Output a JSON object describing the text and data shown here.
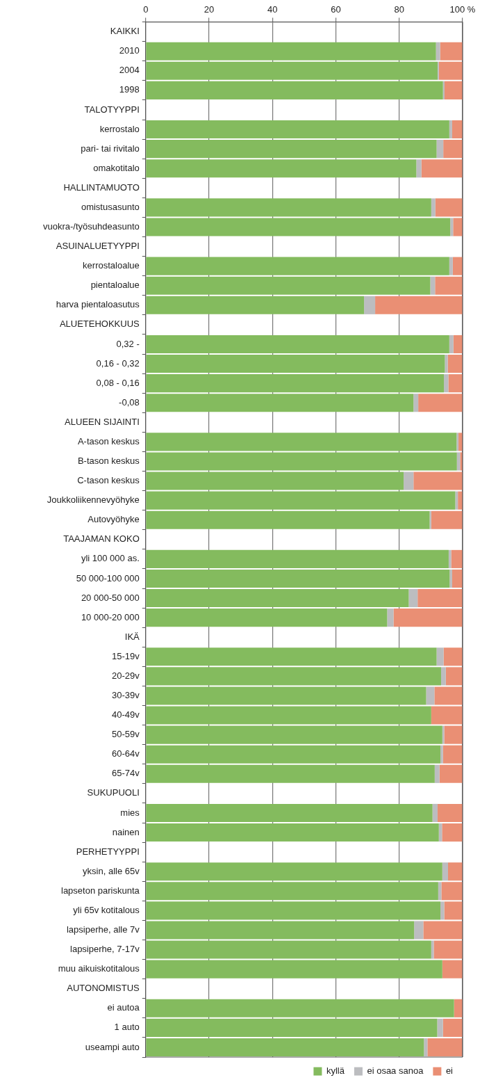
{
  "chart_data": {
    "type": "bar",
    "orientation": "horizontal",
    "stacked": true,
    "categories": [
      "KAIKKI",
      "2010",
      "2004",
      "1998",
      "TALOTYYPPI",
      "kerrostalo",
      "pari- tai rivitalo",
      "omakotitalo",
      "HALLINTAMUOTO",
      "omistusasunto",
      "vuokra-/työsuhdeasunto",
      "ASUINALUETYYPPI",
      "kerrostaloalue",
      "pientaloalue",
      "harva pientaloasutus",
      "ALUETEHOKKUUS",
      "0,32 -",
      "0,16 - 0,32",
      "0,08 - 0,16",
      "-0,08",
      "ALUEEN SIJAINTI",
      "A-tason keskus",
      "B-tason keskus",
      "C-tason keskus",
      "Joukkoliikennevyöhyke",
      "Autovyöhyke",
      "TAAJAMAN KOKO",
      "yli 100 000 as.",
      "50 000-100 000",
      "20 000-50 000",
      "10 000-20 000",
      "IKÄ",
      "15-19v",
      "20-29v",
      "30-39v",
      "40-49v",
      "50-59v",
      "60-64v",
      "65-74v",
      "SUKUPUOLI",
      "mies",
      "nainen",
      "PERHETYYPPI",
      "yksin, alle 65v",
      "lapseton pariskunta",
      "yli 65v kotitalous",
      "lapsiperhe, alle 7v",
      "lapsiperhe, 7-17v",
      "muu aikuiskotitalous",
      "AUTONOMISTUS",
      "ei autoa",
      "1 auto",
      "useampi auto"
    ],
    "series": [
      {
        "name": "kyllä",
        "color": "#84bb5e",
        "values": [
          null,
          91.6,
          92.1,
          93.8,
          null,
          95.8,
          91.8,
          85.4,
          null,
          90.1,
          96.1,
          null,
          95.8,
          89.8,
          68.9,
          null,
          95.8,
          94.4,
          94.1,
          84.5,
          null,
          98.1,
          98.2,
          81.4,
          97.7,
          89.6,
          null,
          95.6,
          95.9,
          83.0,
          76.2,
          null,
          91.8,
          93.2,
          88.5,
          90.1,
          93.6,
          93.0,
          91.2,
          null,
          90.5,
          92.5,
          null,
          93.6,
          92.3,
          93.0,
          84.7,
          90.1,
          93.6,
          null,
          97.3,
          92.0,
          87.8
        ]
      },
      {
        "name": "ei osaa sanoa",
        "color": "#bcbdc0",
        "values": [
          null,
          1.3,
          0.4,
          0.5,
          null,
          0.9,
          2.1,
          1.6,
          null,
          1.3,
          0.9,
          null,
          1.1,
          1.5,
          3.5,
          null,
          1.3,
          0.9,
          1.4,
          1.5,
          null,
          0.6,
          1.0,
          3.1,
          0.8,
          0.5,
          null,
          0.8,
          0.8,
          2.8,
          2.0,
          null,
          2.2,
          1.5,
          2.6,
          0,
          0.6,
          0.8,
          1.5,
          null,
          1.6,
          1.0,
          null,
          1.8,
          1.0,
          1.2,
          2.9,
          0.8,
          0,
          null,
          0,
          1.8,
          1.1
        ]
      },
      {
        "name": "ei",
        "color": "#ea8f74",
        "values": [
          null,
          7.1,
          7.5,
          5.7,
          null,
          3.3,
          6.1,
          13.0,
          null,
          8.6,
          3.0,
          null,
          3.1,
          8.7,
          27.6,
          null,
          2.9,
          4.7,
          4.5,
          14.0,
          null,
          1.3,
          0.8,
          15.5,
          1.5,
          9.9,
          null,
          3.6,
          3.3,
          14.2,
          21.8,
          null,
          6.0,
          5.3,
          8.9,
          9.9,
          5.8,
          6.2,
          7.3,
          null,
          7.9,
          6.5,
          null,
          4.6,
          6.7,
          5.8,
          12.4,
          9.1,
          6.4,
          null,
          2.7,
          6.2,
          11.0
        ]
      }
    ],
    "xlim": [
      0,
      100
    ],
    "xticks": [
      0,
      20,
      40,
      60,
      80,
      {
        "value": 100,
        "label": "100 %"
      }
    ],
    "grid": "x",
    "legend": "bottom right"
  }
}
